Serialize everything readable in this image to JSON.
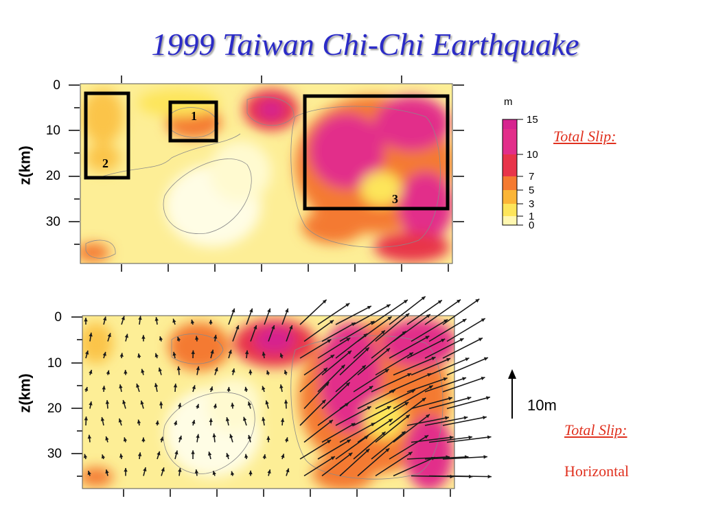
{
  "title": "1999 Taiwan Chi-Chi Earthquake",
  "top_panel": {
    "ylabel": "z(km)",
    "y_ticks": [
      "0",
      "10",
      "20",
      "30"
    ],
    "boxes": [
      "1",
      "2",
      "3"
    ]
  },
  "bottom_panel": {
    "ylabel": "z(km)",
    "y_ticks": [
      "0",
      "10",
      "20",
      "30"
    ]
  },
  "colorbar": {
    "unit": "m",
    "ticks": [
      "15",
      "10",
      "7",
      "5",
      "3",
      "1",
      "0"
    ],
    "colors": [
      "#ffffff",
      "#fff7b0",
      "#fde55a",
      "#fbb537",
      "#f47a30",
      "#e8344a",
      "#e22e8a",
      "#d6248f"
    ]
  },
  "scale": {
    "label": "10m"
  },
  "labels": {
    "total_slip_top": "Total Slip:",
    "total_slip_bottom": "Total Slip:",
    "horizontal": "Horizontal"
  }
}
